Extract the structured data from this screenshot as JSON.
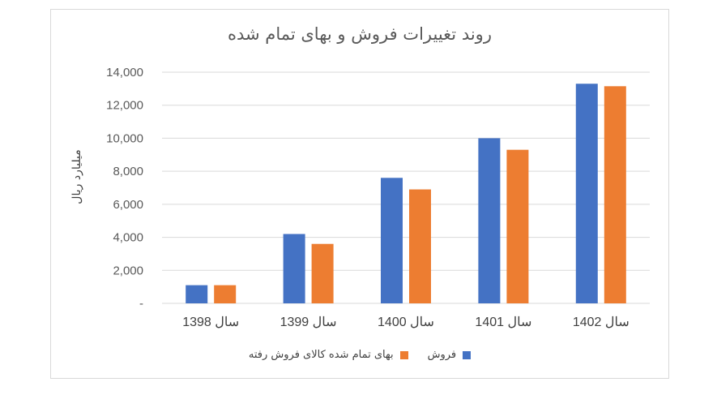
{
  "chart_data": {
    "type": "bar",
    "title": "روند تغییرات فروش و بهای تمام شده",
    "ylabel": "میلیارد ریال",
    "xlabel": "",
    "ylim": [
      0,
      14000
    ],
    "yticks": [
      0,
      2000,
      4000,
      6000,
      8000,
      10000,
      12000,
      14000
    ],
    "ytick_labels": [
      "-",
      "2,000",
      "4,000",
      "6,000",
      "8,000",
      "10,000",
      "12,000",
      "14,000"
    ],
    "categories": [
      "سال 1398",
      "سال 1399",
      "سال 1400",
      "سال 1401",
      "سال 1402"
    ],
    "series": [
      {
        "name": "فروش",
        "color": "#4472c4",
        "values": [
          1100,
          4200,
          7600,
          10000,
          13300
        ]
      },
      {
        "name": "بهای تمام شده کالای فروش رفته",
        "color": "#ed7d31",
        "values": [
          1100,
          3600,
          6900,
          9300,
          13150
        ]
      }
    ],
    "grid": true,
    "legend_position": "bottom"
  }
}
